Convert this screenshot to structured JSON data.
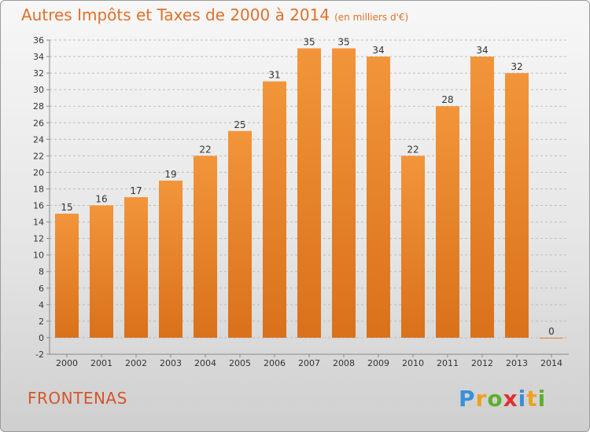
{
  "title": "Autres Impôts et Taxes de 2000 à 2014",
  "subtitle": "(en milliers d'€)",
  "city": "FRONTENAS",
  "brand": {
    "letters": [
      "P",
      "r",
      "o",
      "x",
      "i",
      "t",
      "i"
    ],
    "colors": [
      "#3a8fd8",
      "#f0a020",
      "#5cb030",
      "#e03030",
      "#3a8fd8",
      "#f0a020",
      "#5cb030"
    ]
  },
  "colors": {
    "bar": "#f2953a",
    "bar_dark": "#d9711b",
    "text": "#333333",
    "accent": "#e0702c"
  },
  "chart_data": {
    "type": "bar",
    "categories": [
      "2000",
      "2001",
      "2002",
      "2003",
      "2004",
      "2005",
      "2006",
      "2007",
      "2008",
      "2009",
      "2010",
      "2011",
      "2012",
      "2013",
      "2014"
    ],
    "values": [
      15,
      16,
      17,
      19,
      22,
      25,
      31,
      35,
      35,
      34,
      22,
      28,
      34,
      32,
      0
    ],
    "ylim": [
      -2,
      36
    ],
    "yticks": [
      -2,
      0,
      2,
      4,
      6,
      8,
      10,
      12,
      14,
      16,
      18,
      20,
      22,
      24,
      26,
      28,
      30,
      32,
      34,
      36
    ],
    "grid": "horizontal dashed",
    "legend": "none"
  }
}
